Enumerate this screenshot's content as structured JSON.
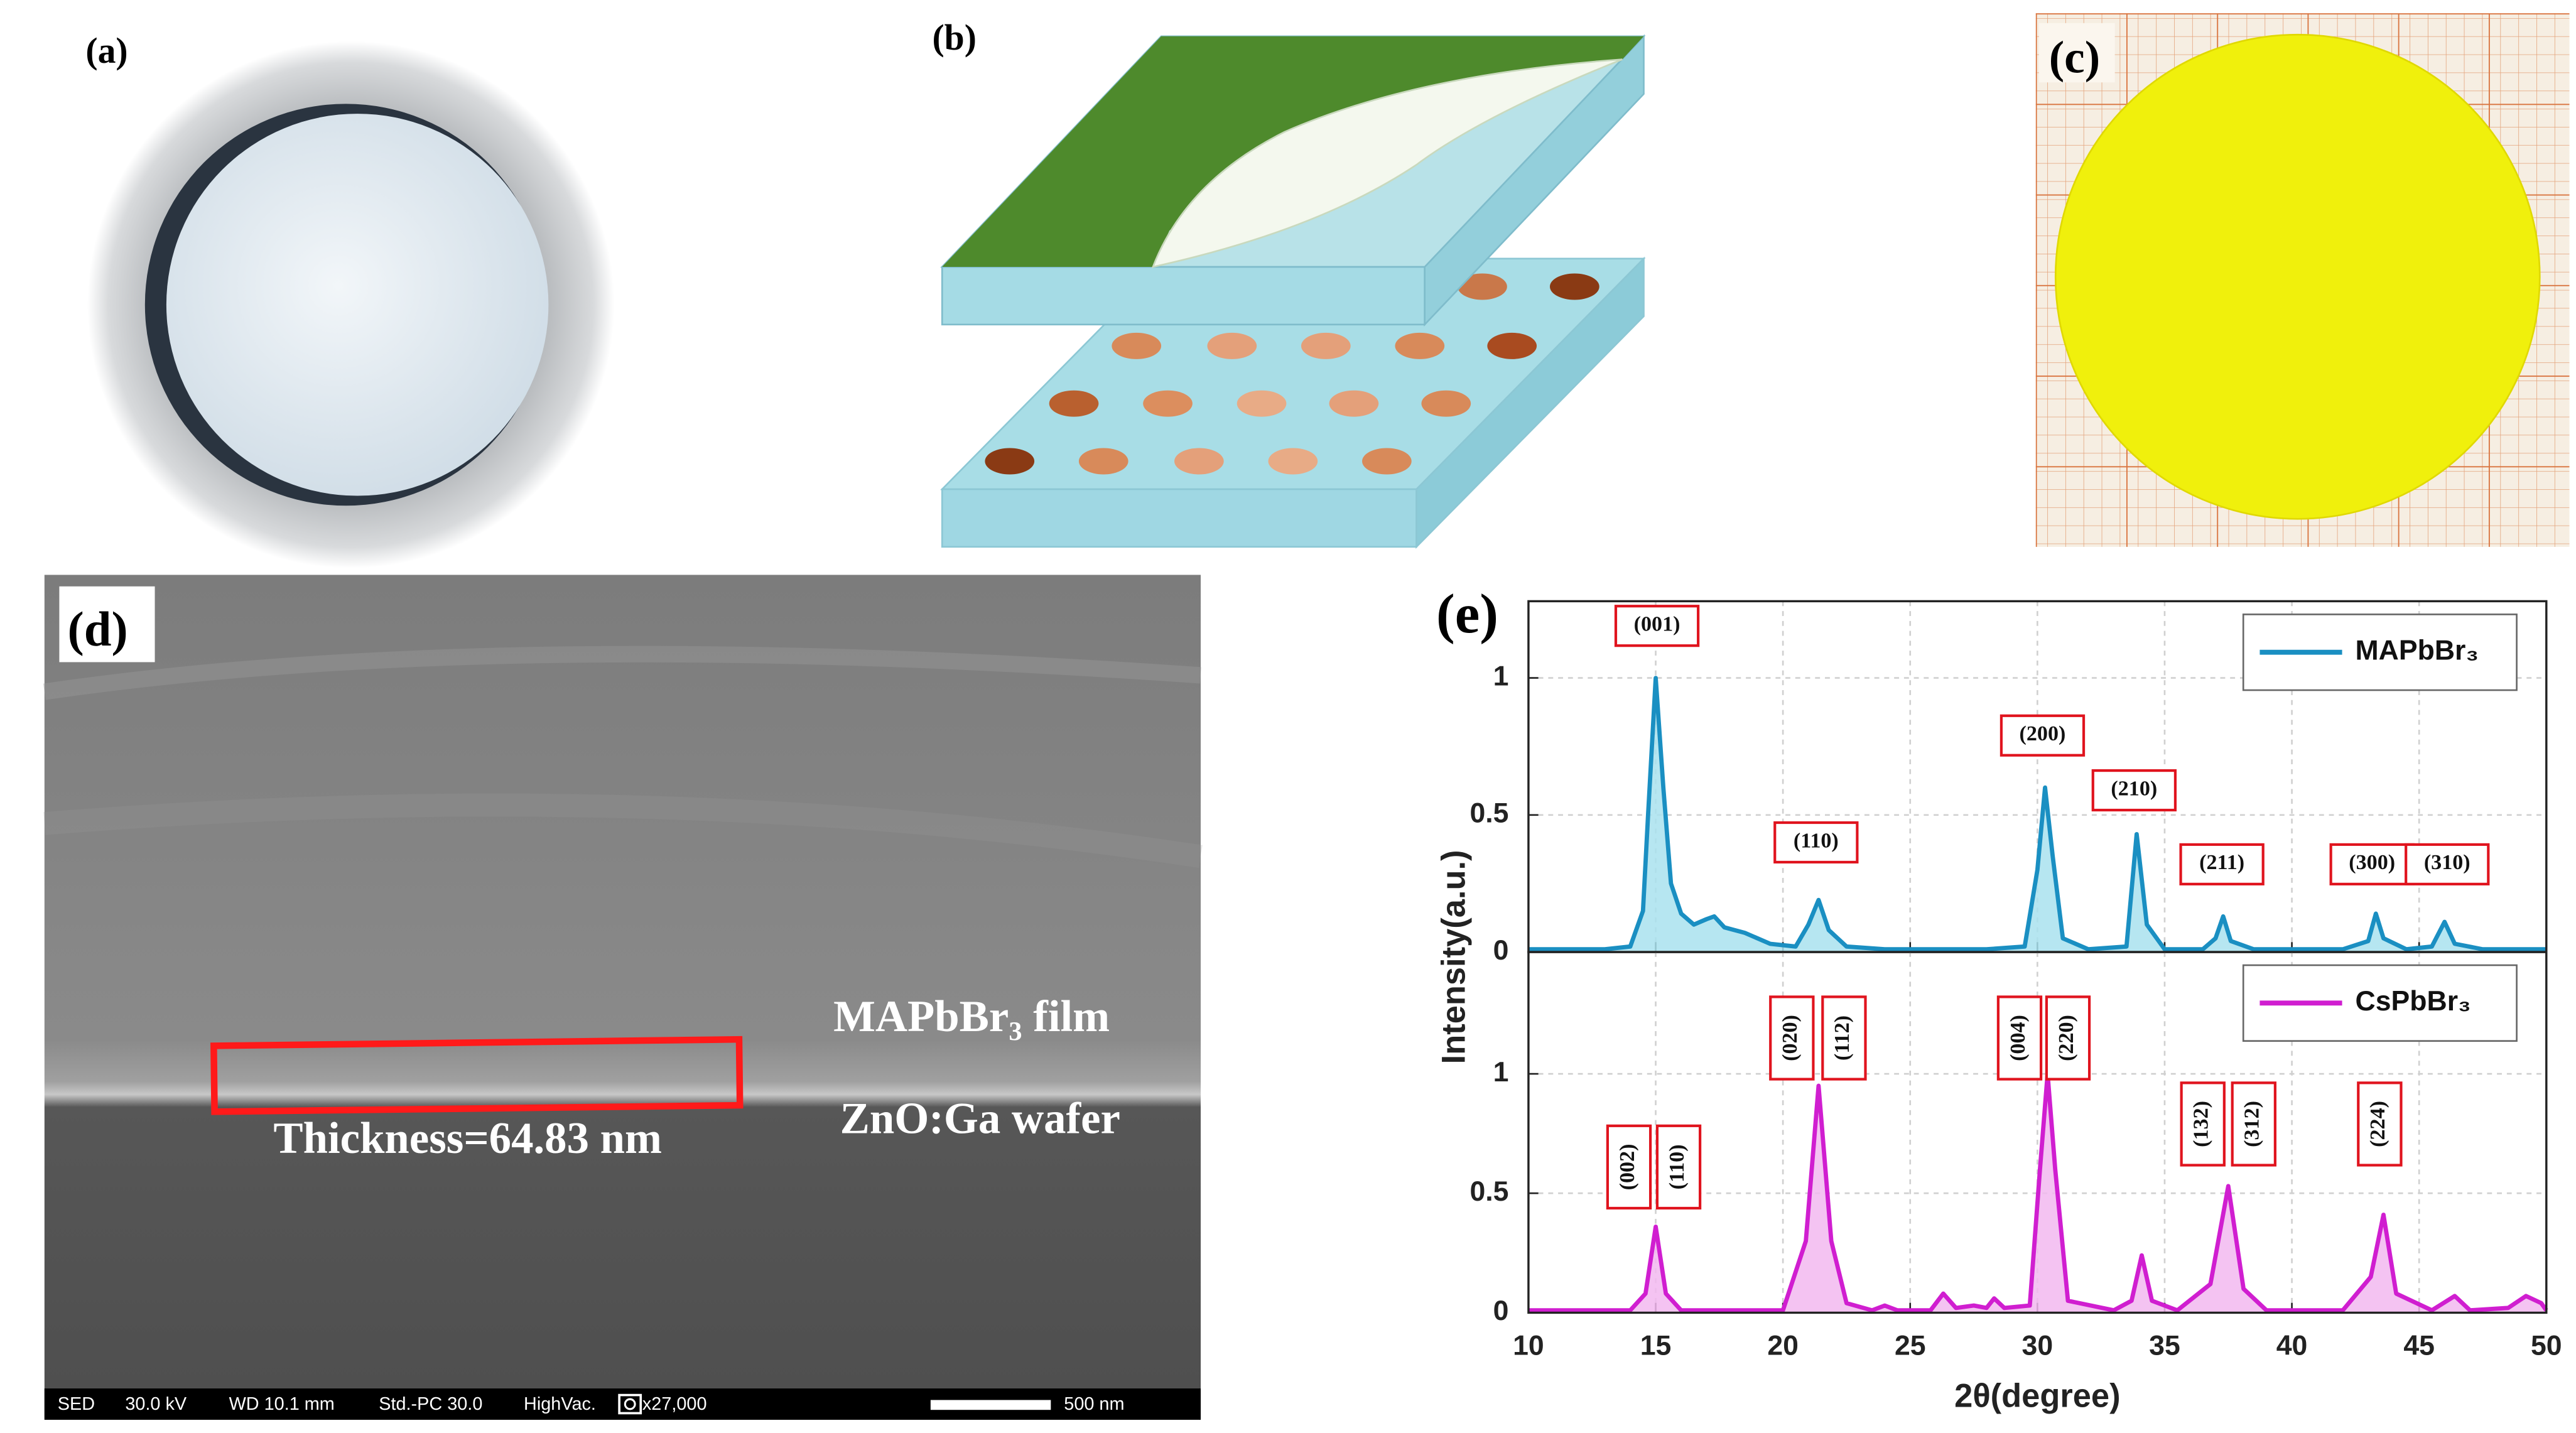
{
  "panels": {
    "a": {
      "label": "(a)"
    },
    "b": {
      "label": "(b)"
    },
    "c": {
      "label": "(c)"
    },
    "d": {
      "label": "(d)",
      "film": "MAPbBr₃ film",
      "thickness": "Thickness=64.83 nm",
      "wafer": "ZnO:Ga wafer",
      "info": [
        "SED",
        "30.0 kV",
        "WD 10.1 mm",
        "Std.-PC 30.0",
        "HighVac.",
        "x27,000"
      ],
      "scale_bar": "500 nm"
    },
    "e": {
      "label": "(e)"
    }
  },
  "chart_data": [
    {
      "type": "line",
      "ylabel": "Intensity(a.u.)",
      "xlim": [
        10,
        50
      ],
      "xticks": [
        10,
        15,
        20,
        25,
        30,
        35,
        40,
        45,
        50
      ],
      "show_xtick_labels": false,
      "ylim": [
        0,
        1.28
      ],
      "yticks": [
        0,
        0.5,
        1
      ],
      "grid": true,
      "legend": "upper right",
      "series": [
        {
          "name": "MAPbBr₃",
          "color": "#1a8fc2",
          "fill": "#a9e2ef",
          "x": [
            10,
            11,
            12,
            13,
            14,
            14.5,
            14.7,
            15,
            15.3,
            15.6,
            16,
            16.5,
            17,
            17.3,
            17.7,
            18.5,
            19.5,
            20.5,
            21,
            21.4,
            21.8,
            22.5,
            24,
            26,
            28,
            29.5,
            30,
            30.3,
            30.6,
            31,
            32,
            33.5,
            33.9,
            34.3,
            35,
            36.5,
            37,
            37.3,
            37.6,
            38.5,
            40,
            42,
            43,
            43.3,
            43.6,
            44.5,
            45.5,
            46,
            46.4,
            47.5,
            49,
            50
          ],
          "values": [
            0.01,
            0.01,
            0.01,
            0.01,
            0.02,
            0.15,
            0.5,
            1.0,
            0.6,
            0.25,
            0.14,
            0.1,
            0.12,
            0.13,
            0.09,
            0.07,
            0.03,
            0.02,
            0.1,
            0.19,
            0.08,
            0.02,
            0.01,
            0.01,
            0.01,
            0.02,
            0.3,
            0.6,
            0.35,
            0.05,
            0.01,
            0.02,
            0.43,
            0.1,
            0.01,
            0.01,
            0.05,
            0.13,
            0.04,
            0.01,
            0.01,
            0.01,
            0.04,
            0.14,
            0.05,
            0.01,
            0.02,
            0.11,
            0.03,
            0.01,
            0.01,
            0.01
          ]
        }
      ],
      "annotations": [
        {
          "text": "(001)",
          "x": 15.05,
          "y": 1.19,
          "orientation": "horizontal"
        },
        {
          "text": "(110)",
          "x": 21.3,
          "y": 0.4,
          "orientation": "horizontal"
        },
        {
          "text": "(200)",
          "x": 30.2,
          "y": 0.79,
          "orientation": "horizontal"
        },
        {
          "text": "(210)",
          "x": 33.8,
          "y": 0.59,
          "orientation": "horizontal"
        },
        {
          "text": "(211)",
          "x": 37.25,
          "y": 0.32,
          "orientation": "horizontal"
        },
        {
          "text": "(300)",
          "x": 43.15,
          "y": 0.32,
          "orientation": "horizontal"
        },
        {
          "text": "(310)",
          "x": 46.1,
          "y": 0.32,
          "orientation": "horizontal"
        }
      ]
    },
    {
      "type": "line",
      "xlabel": "2θ(degree)",
      "xlim": [
        10,
        50
      ],
      "xticks": [
        10,
        15,
        20,
        25,
        30,
        35,
        40,
        45,
        50
      ],
      "show_xtick_labels": true,
      "ylim": [
        0,
        1.51
      ],
      "yticks": [
        0,
        0.5,
        1
      ],
      "grid": true,
      "legend": "upper right",
      "series": [
        {
          "name": "CsPbBr₃",
          "color": "#d01ed0",
          "fill": "#f2b8f0",
          "x": [
            10,
            12,
            14,
            14.6,
            15,
            15.4,
            16,
            18,
            20,
            20.9,
            21.4,
            21.9,
            22.5,
            23.5,
            24,
            24.5,
            25.8,
            26.3,
            26.8,
            27.5,
            28,
            28.3,
            28.7,
            29.7,
            30.1,
            30.4,
            30.7,
            31.2,
            33,
            33.7,
            34.1,
            34.5,
            35.5,
            36.8,
            37.5,
            38.1,
            39,
            42,
            43.1,
            43.6,
            44.1,
            45.5,
            46.4,
            47,
            48.5,
            49.2,
            49.8,
            50
          ],
          "values": [
            0.01,
            0.01,
            0.01,
            0.08,
            0.36,
            0.08,
            0.01,
            0.01,
            0.01,
            0.3,
            0.95,
            0.3,
            0.04,
            0.01,
            0.03,
            0.01,
            0.01,
            0.08,
            0.02,
            0.03,
            0.02,
            0.06,
            0.02,
            0.03,
            0.6,
            1.0,
            0.6,
            0.05,
            0.01,
            0.05,
            0.24,
            0.05,
            0.01,
            0.12,
            0.53,
            0.1,
            0.01,
            0.01,
            0.15,
            0.41,
            0.08,
            0.01,
            0.07,
            0.01,
            0.02,
            0.07,
            0.04,
            0.01
          ]
        }
      ],
      "annotations": [
        {
          "text": "(002)",
          "x": 13.95,
          "y": 0.61,
          "orientation": "vertical"
        },
        {
          "text": "(110)",
          "x": 15.9,
          "y": 0.61,
          "orientation": "vertical"
        },
        {
          "text": "(020)",
          "x": 20.35,
          "y": 1.15,
          "orientation": "vertical"
        },
        {
          "text": "(112)",
          "x": 22.4,
          "y": 1.15,
          "orientation": "vertical"
        },
        {
          "text": "(004)",
          "x": 29.3,
          "y": 1.15,
          "orientation": "vertical"
        },
        {
          "text": "(220)",
          "x": 31.2,
          "y": 1.15,
          "orientation": "vertical"
        },
        {
          "text": "(132)",
          "x": 36.5,
          "y": 0.79,
          "orientation": "vertical"
        },
        {
          "text": "(312)",
          "x": 38.5,
          "y": 0.79,
          "orientation": "vertical"
        },
        {
          "text": "(224)",
          "x": 43.45,
          "y": 0.79,
          "orientation": "vertical"
        }
      ]
    }
  ]
}
